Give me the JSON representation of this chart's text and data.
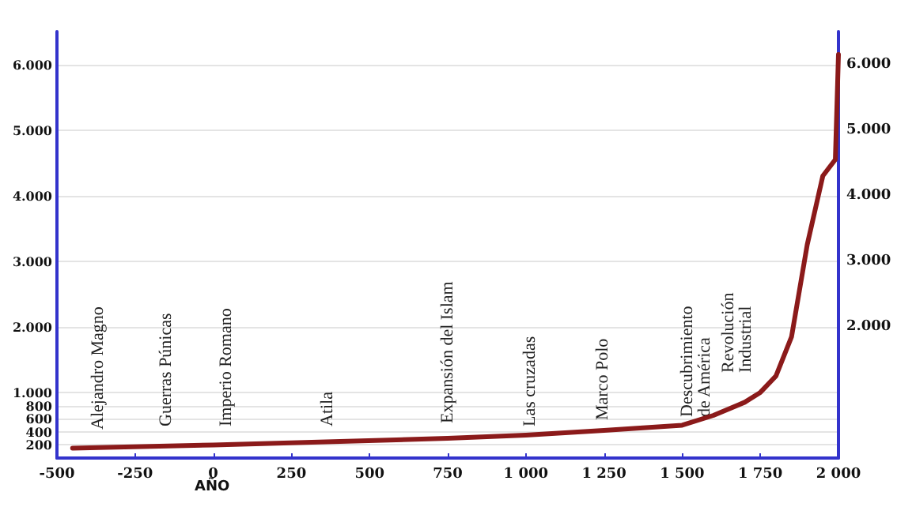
{
  "chart_data": {
    "type": "line",
    "xlabel": "AÑO",
    "x": [
      -450,
      0,
      750,
      1000,
      1250,
      1500,
      1600,
      1700,
      1750,
      1800,
      1850,
      1900,
      1950,
      1990,
      2000
    ],
    "series": [
      {
        "color": "#8b1a1a",
        "values": [
          150,
          200,
          300,
          350,
          420,
          500,
          650,
          850,
          1000,
          1250,
          1850,
          3250,
          4300,
          4550,
          6150
        ]
      }
    ],
    "xlim": [
      -500,
      2000
    ],
    "xticks": [
      -500,
      -250,
      0,
      250,
      500,
      750,
      {
        "value": 1000,
        "label": "1 000"
      },
      {
        "value": 1250,
        "label": "1 250"
      },
      {
        "value": 1500,
        "label": "1 500"
      },
      {
        "value": 1750,
        "label": "1 750"
      },
      {
        "value": 2000,
        "label": "2 000"
      }
    ],
    "ylim": [
      0,
      6500
    ],
    "yticks": [
      200,
      400,
      600,
      800,
      {
        "value": 1000,
        "label": "1.000"
      },
      {
        "value": 2000,
        "label": "2.000"
      },
      {
        "value": 3000,
        "label": "3.000"
      },
      {
        "value": 4000,
        "label": "4.000"
      },
      {
        "value": 5000,
        "label": "5.000"
      },
      {
        "value": 6000,
        "label": "6.000"
      }
    ],
    "y2lim": [
      0,
      6500
    ],
    "y2ticks": [
      {
        "value": 2000,
        "label": "2.000"
      },
      {
        "value": 3000,
        "label": "3.000"
      },
      {
        "value": 4000,
        "label": "4.000"
      },
      {
        "value": 5000,
        "label": "5.000"
      },
      {
        "value": 6000,
        "label": "6.000"
      }
    ],
    "grid": "y",
    "marker": "none",
    "line_style": "solid",
    "annotations": [
      "Alejandro Magno",
      "Guerras Púnicas",
      "Imperio Romano",
      "Atila",
      "Expansión del Islam",
      "Las cruzadas",
      "Marco Polo",
      "Descubrimiento\nde América",
      "Revolución\nIndustrial"
    ]
  }
}
